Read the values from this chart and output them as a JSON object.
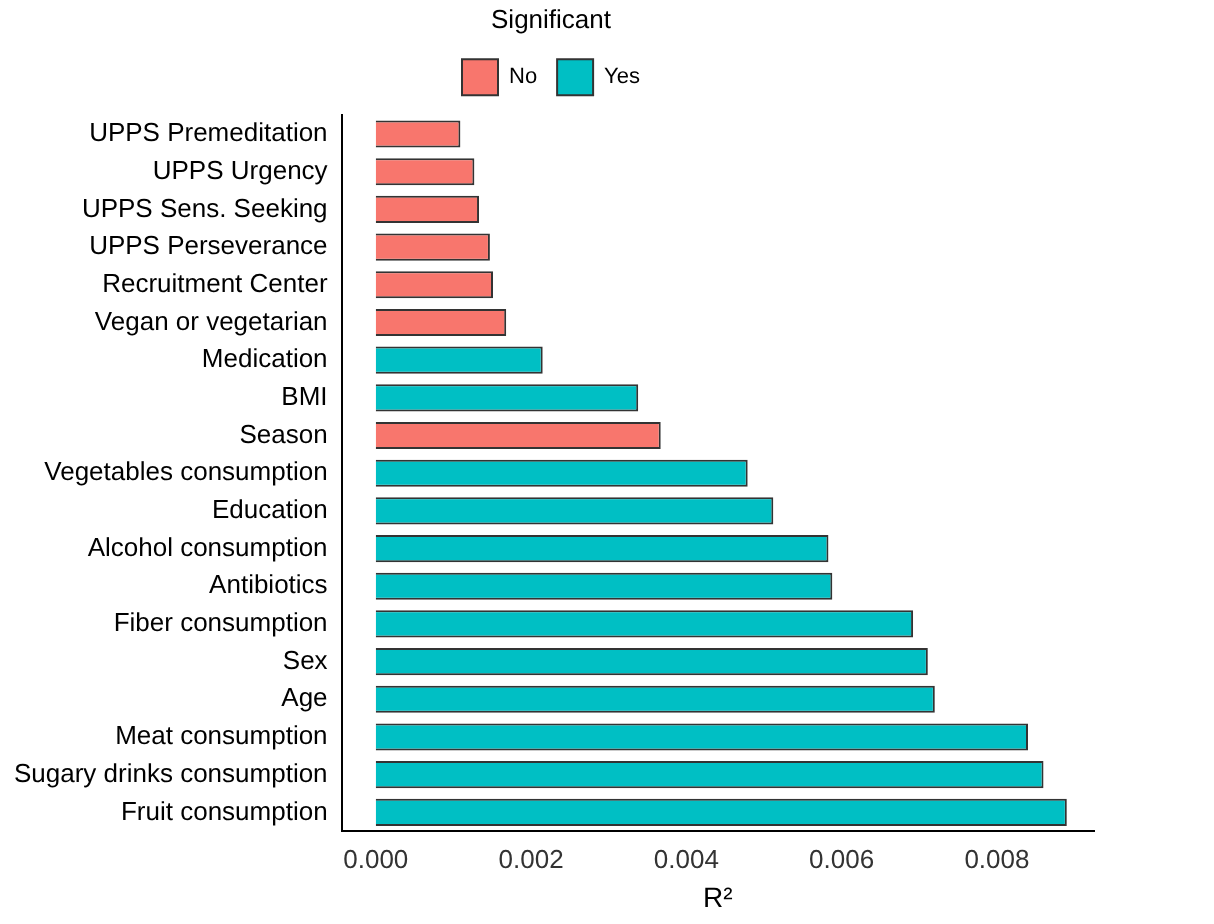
{
  "chart_data": {
    "type": "bar",
    "orientation": "horizontal",
    "xlabel": "R²",
    "legend_title": "Significant",
    "legend": "top",
    "grid": false,
    "categories": [
      "UPPS Premeditation",
      "UPPS Urgency",
      "UPPS Sens. Seeking",
      "UPPS Perseverance",
      "Recruitment Center",
      "Vegan or vegetarian",
      "Medication",
      "BMI",
      "Season",
      "Vegetables consumption",
      "Education",
      "Alcohol consumption",
      "Antibiotics",
      "Fiber consumption",
      "Sex",
      "Age",
      "Meat consumption",
      "Sugary drinks consumption",
      "Fruit consumption"
    ],
    "series": [
      {
        "name": "No",
        "color": "#f8766d",
        "values": [
          0.00109,
          0.00127,
          0.00133,
          0.00147,
          0.00151,
          0.00168,
          null,
          null,
          0.00367,
          null,
          null,
          null,
          null,
          null,
          null,
          null,
          null,
          null,
          null
        ]
      },
      {
        "name": "Yes",
        "color": "#00bfc4",
        "values": [
          null,
          null,
          null,
          null,
          null,
          null,
          0.00215,
          0.00338,
          null,
          0.00479,
          0.00512,
          0.00583,
          0.00588,
          0.00692,
          0.00711,
          0.0072,
          0.0084,
          0.0086,
          0.0089
        ]
      }
    ],
    "xlim": [
      -0.00044,
      0.00925
    ],
    "xticks": [
      {
        "value": 0,
        "label": "0.000"
      },
      {
        "value": 0.002,
        "label": "0.002"
      },
      {
        "value": 0.004,
        "label": "0.004"
      },
      {
        "value": 0.006,
        "label": "0.006"
      },
      {
        "value": 0.008,
        "label": "0.008"
      }
    ]
  }
}
